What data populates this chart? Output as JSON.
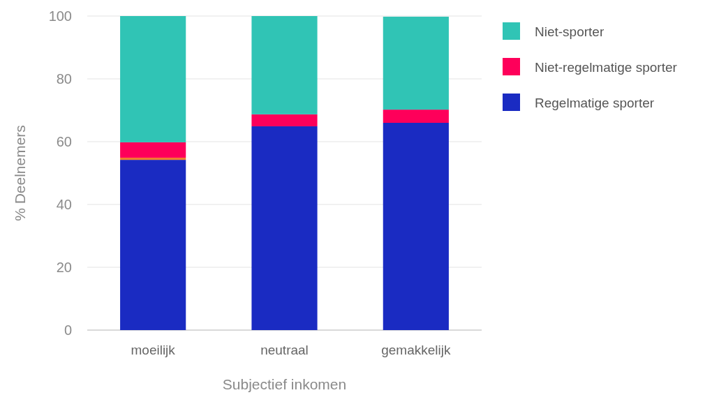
{
  "chart_data": {
    "type": "bar",
    "stacked": true,
    "xlabel": "Subjectief inkomen",
    "ylabel": "% Deelnemers",
    "categories": [
      "moeilijk",
      "neutraal",
      "gemakkelijk"
    ],
    "series": [
      {
        "name": "Regelmatige sporter",
        "color": "#1a2bc2",
        "values": [
          54.2,
          64.9,
          66.0
        ]
      },
      {
        "color": "#f07c30",
        "values": [
          0.7,
          0,
          0
        ]
      },
      {
        "name": "Niet-regelmatige sporter",
        "color": "#fe005a",
        "values": [
          4.9,
          3.8,
          4.2
        ]
      },
      {
        "name": "Niet-sporter",
        "color": "#30c4b5",
        "values": [
          40.2,
          31.3,
          29.6
        ]
      }
    ],
    "ylim": [
      0,
      100
    ],
    "yticks": [
      0,
      20,
      40,
      60,
      80,
      100
    ],
    "grid": "y",
    "legend": "right"
  }
}
